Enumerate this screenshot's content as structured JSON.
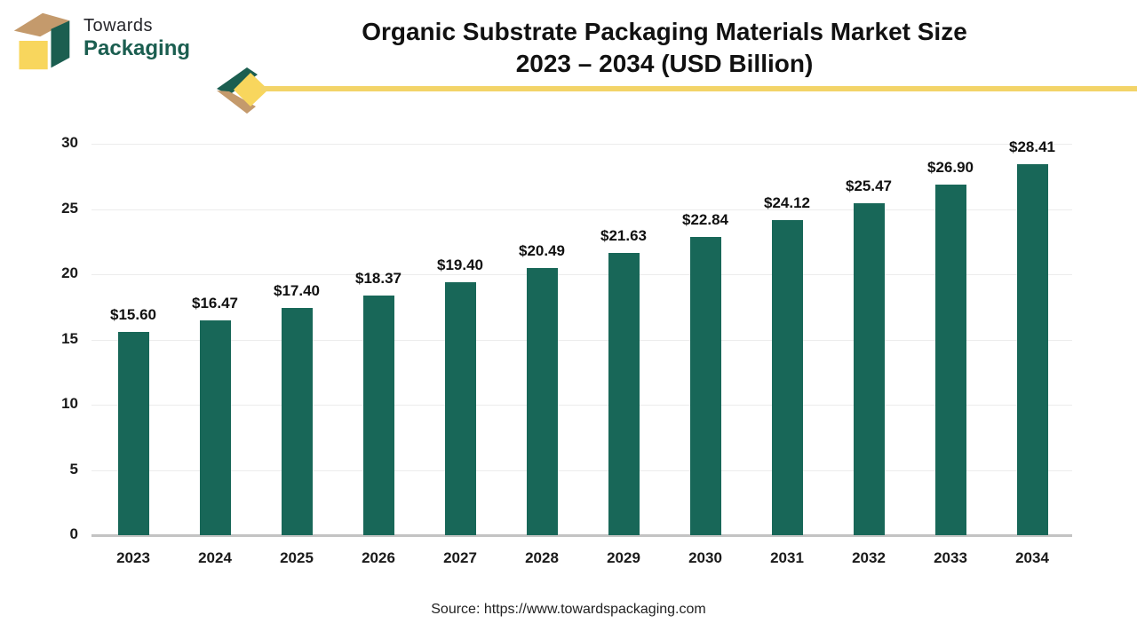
{
  "header": {
    "logo": {
      "line1": "Towards",
      "line2": "Packaging"
    },
    "title_line1": "Organic Substrate Packaging Materials Market Size",
    "title_line2": "2023 – 2034 (USD Billion)"
  },
  "footer": {
    "source": "Source: https://www.towardspackaging.com"
  },
  "colors": {
    "bar": "#186758",
    "accent_yellow": "#f3d468",
    "logo_green": "#1b5e50",
    "logo_tan": "#c49a6c",
    "logo_yellow": "#f8d65d",
    "grid": "#ececec",
    "axis": "#c3c3c3"
  },
  "chart_data": {
    "type": "bar",
    "title": "Organic Substrate Packaging Materials Market Size 2023 – 2034 (USD Billion)",
    "categories": [
      "2023",
      "2024",
      "2025",
      "2026",
      "2027",
      "2028",
      "2029",
      "2030",
      "2031",
      "2032",
      "2033",
      "2034"
    ],
    "values": [
      15.6,
      16.47,
      17.4,
      18.37,
      19.4,
      20.49,
      21.63,
      22.84,
      24.12,
      25.47,
      26.9,
      28.41
    ],
    "value_labels": [
      "$15.60",
      "$16.47",
      "$17.40",
      "$18.37",
      "$19.40",
      "$20.49",
      "$21.63",
      "$22.84",
      "$24.12",
      "$25.47",
      "$26.90",
      "$28.41"
    ],
    "value_prefix": "$",
    "xlabel": "",
    "ylabel": "",
    "ylim": [
      0,
      30
    ],
    "yticks": [
      0,
      5,
      10,
      15,
      20,
      25,
      30
    ],
    "grid": true,
    "legend": false
  }
}
